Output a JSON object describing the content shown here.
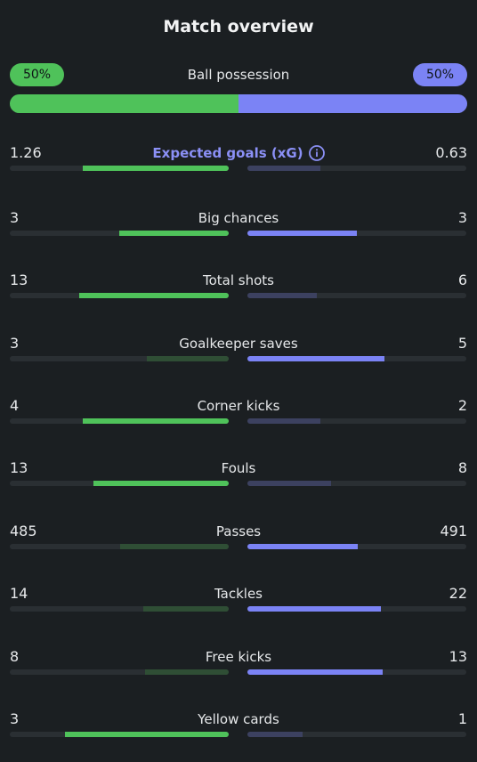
{
  "title": "Match overview",
  "possession": {
    "label": "Ball possession",
    "home": "50%",
    "away": "50%",
    "home_fraction": 0.5,
    "away_fraction": 0.5
  },
  "colors": {
    "home": "#4fc25a",
    "away": "#7b83f5",
    "home_weak": "#2f4e35",
    "away_weak": "#3c4160",
    "track": "#2a2f33",
    "background": "#1b1f22",
    "xg_label": "#8b90f6"
  },
  "stats": [
    {
      "label": "Expected goals (xG)",
      "home": "1.26",
      "away": "0.63",
      "home_fraction": 0.667,
      "away_fraction": 0.333,
      "has_info_icon": true
    },
    {
      "label": "Big chances",
      "home": "3",
      "away": "3",
      "home_fraction": 0.5,
      "away_fraction": 0.5
    },
    {
      "label": "Total shots",
      "home": "13",
      "away": "6",
      "home_fraction": 0.684,
      "away_fraction": 0.316
    },
    {
      "label": "Goalkeeper saves",
      "home": "3",
      "away": "5",
      "home_fraction": 0.375,
      "away_fraction": 0.625
    },
    {
      "label": "Corner kicks",
      "home": "4",
      "away": "2",
      "home_fraction": 0.667,
      "away_fraction": 0.333
    },
    {
      "label": "Fouls",
      "home": "13",
      "away": "8",
      "home_fraction": 0.619,
      "away_fraction": 0.381
    },
    {
      "label": "Passes",
      "home": "485",
      "away": "491",
      "home_fraction": 0.497,
      "away_fraction": 0.503
    },
    {
      "label": "Tackles",
      "home": "14",
      "away": "22",
      "home_fraction": 0.389,
      "away_fraction": 0.611
    },
    {
      "label": "Free kicks",
      "home": "8",
      "away": "13",
      "home_fraction": 0.381,
      "away_fraction": 0.619
    },
    {
      "label": "Yellow cards",
      "home": "3",
      "away": "1",
      "home_fraction": 0.75,
      "away_fraction": 0.25
    }
  ]
}
